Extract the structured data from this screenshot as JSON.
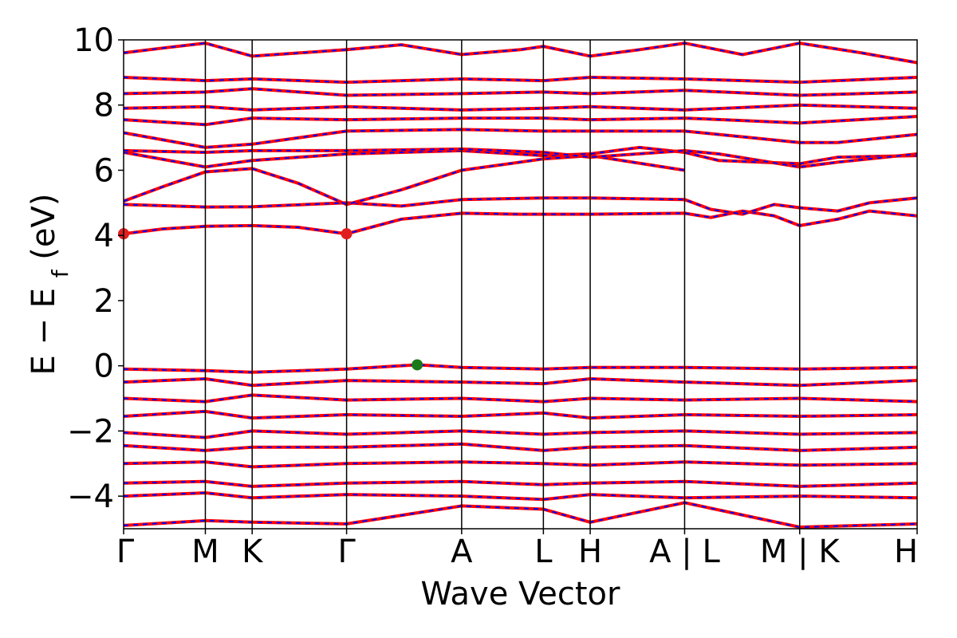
{
  "chart_data": {
    "type": "line",
    "title": "",
    "xlabel": "Wave Vector",
    "ylabel": "E − E",
    "ylabel_subscript": "f",
    "ylabel_unit": "(eV)",
    "ylim": [
      -5,
      10
    ],
    "yticks": [
      -4,
      -2,
      0,
      2,
      4,
      6,
      8,
      10
    ],
    "ytick_labels": [
      "−4",
      "−2",
      "0",
      "2",
      "4",
      "6",
      "8",
      "10"
    ],
    "kpath_positions": [
      0,
      0.103,
      0.162,
      0.281,
      0.426,
      0.529,
      0.588,
      0.707,
      0.852,
      1.0
    ],
    "kpath_labels": [
      "Γ",
      "M",
      "K",
      "Γ",
      "A",
      "L",
      "H",
      "A | L",
      "M | K",
      "H"
    ],
    "colors": {
      "spin_up": "#ff0000",
      "spin_down": "#0000ff",
      "cbm": "#e02020",
      "vbm": "#1a7a1a"
    },
    "cbm_points": [
      {
        "k": 0.0,
        "energy": 4.05
      },
      {
        "k": 0.281,
        "energy": 4.05
      }
    ],
    "vbm_point": {
      "k": 0.37,
      "energy": 0.03
    },
    "series": [
      {
        "values": [
          [
            0,
            4.05
          ],
          [
            0.05,
            4.2
          ],
          [
            0.103,
            4.28
          ],
          [
            0.162,
            4.3
          ],
          [
            0.22,
            4.25
          ],
          [
            0.281,
            4.05
          ],
          [
            0.35,
            4.5
          ],
          [
            0.426,
            4.68
          ],
          [
            0.5,
            4.65
          ],
          [
            0.529,
            4.65
          ],
          [
            0.588,
            4.65
          ],
          [
            0.707,
            4.68
          ],
          [
            0.74,
            4.55
          ],
          [
            0.78,
            4.75
          ],
          [
            0.82,
            4.6
          ],
          [
            0.852,
            4.3
          ],
          [
            0.9,
            4.5
          ],
          [
            0.94,
            4.75
          ],
          [
            1.0,
            4.6
          ]
        ]
      },
      {
        "values": [
          [
            0,
            4.95
          ],
          [
            0.103,
            4.87
          ],
          [
            0.162,
            4.88
          ],
          [
            0.281,
            5.0
          ],
          [
            0.35,
            4.9
          ],
          [
            0.426,
            5.1
          ],
          [
            0.529,
            5.15
          ],
          [
            0.588,
            5.15
          ],
          [
            0.707,
            5.1
          ],
          [
            0.74,
            4.8
          ],
          [
            0.78,
            4.65
          ],
          [
            0.82,
            4.95
          ],
          [
            0.852,
            4.85
          ],
          [
            0.9,
            4.75
          ],
          [
            0.94,
            5.0
          ],
          [
            1.0,
            5.15
          ]
        ]
      },
      {
        "values": [
          [
            0,
            5.05
          ],
          [
            0.05,
            5.5
          ],
          [
            0.103,
            5.95
          ],
          [
            0.162,
            6.05
          ],
          [
            0.22,
            5.6
          ],
          [
            0.281,
            4.95
          ],
          [
            0.35,
            5.4
          ],
          [
            0.426,
            6.0
          ],
          [
            0.5,
            6.25
          ],
          [
            0.529,
            6.35
          ],
          [
            0.588,
            6.45
          ],
          [
            0.707,
            6.0
          ]
        ]
      },
      {
        "values": [
          [
            0,
            6.55
          ],
          [
            0.103,
            6.1
          ],
          [
            0.162,
            6.3
          ],
          [
            0.281,
            6.5
          ],
          [
            0.426,
            6.6
          ],
          [
            0.529,
            6.45
          ],
          [
            0.588,
            6.5
          ],
          [
            0.65,
            6.7
          ],
          [
            0.707,
            6.55
          ],
          [
            0.75,
            6.3
          ],
          [
            0.852,
            6.2
          ],
          [
            0.9,
            6.4
          ],
          [
            1.0,
            6.45
          ]
        ]
      },
      {
        "values": [
          [
            0,
            6.6
          ],
          [
            0.103,
            6.55
          ],
          [
            0.162,
            6.6
          ],
          [
            0.281,
            6.6
          ],
          [
            0.426,
            6.65
          ],
          [
            0.529,
            6.55
          ],
          [
            0.588,
            6.4
          ],
          [
            0.707,
            6.6
          ],
          [
            0.75,
            6.5
          ],
          [
            0.852,
            6.1
          ],
          [
            0.9,
            6.25
          ],
          [
            1.0,
            6.5
          ]
        ]
      },
      {
        "values": [
          [
            0,
            7.15
          ],
          [
            0.103,
            6.7
          ],
          [
            0.162,
            6.8
          ],
          [
            0.281,
            7.2
          ],
          [
            0.426,
            7.25
          ],
          [
            0.529,
            7.2
          ],
          [
            0.588,
            7.2
          ],
          [
            0.707,
            7.2
          ],
          [
            0.852,
            6.85
          ],
          [
            0.9,
            6.85
          ],
          [
            1.0,
            7.1
          ]
        ]
      },
      {
        "values": [
          [
            0,
            7.55
          ],
          [
            0.103,
            7.4
          ],
          [
            0.162,
            7.6
          ],
          [
            0.281,
            7.55
          ],
          [
            0.426,
            7.6
          ],
          [
            0.529,
            7.6
          ],
          [
            0.588,
            7.55
          ],
          [
            0.707,
            7.6
          ],
          [
            0.852,
            7.45
          ],
          [
            1.0,
            7.65
          ]
        ]
      },
      {
        "values": [
          [
            0,
            7.9
          ],
          [
            0.103,
            7.95
          ],
          [
            0.162,
            7.85
          ],
          [
            0.281,
            7.95
          ],
          [
            0.426,
            7.85
          ],
          [
            0.529,
            7.9
          ],
          [
            0.588,
            7.95
          ],
          [
            0.707,
            7.85
          ],
          [
            0.852,
            8.0
          ],
          [
            1.0,
            7.9
          ]
        ]
      },
      {
        "values": [
          [
            0,
            8.35
          ],
          [
            0.103,
            8.4
          ],
          [
            0.162,
            8.5
          ],
          [
            0.281,
            8.3
          ],
          [
            0.426,
            8.35
          ],
          [
            0.529,
            8.4
          ],
          [
            0.588,
            8.35
          ],
          [
            0.707,
            8.45
          ],
          [
            0.852,
            8.3
          ],
          [
            1.0,
            8.4
          ]
        ]
      },
      {
        "values": [
          [
            0,
            8.85
          ],
          [
            0.103,
            8.75
          ],
          [
            0.162,
            8.8
          ],
          [
            0.281,
            8.7
          ],
          [
            0.426,
            8.8
          ],
          [
            0.529,
            8.75
          ],
          [
            0.588,
            8.85
          ],
          [
            0.707,
            8.8
          ],
          [
            0.852,
            8.7
          ],
          [
            1.0,
            8.85
          ]
        ]
      },
      {
        "values": [
          [
            0,
            9.6
          ],
          [
            0.05,
            9.75
          ],
          [
            0.103,
            9.9
          ],
          [
            0.162,
            9.5
          ],
          [
            0.281,
            9.7
          ],
          [
            0.35,
            9.85
          ],
          [
            0.426,
            9.55
          ],
          [
            0.5,
            9.7
          ],
          [
            0.529,
            9.8
          ],
          [
            0.588,
            9.5
          ],
          [
            0.65,
            9.7
          ],
          [
            0.707,
            9.9
          ],
          [
            0.78,
            9.55
          ],
          [
            0.852,
            9.9
          ],
          [
            0.93,
            9.6
          ],
          [
            1.0,
            9.3
          ]
        ]
      },
      {
        "values": [
          [
            0,
            -0.1
          ],
          [
            0.103,
            -0.15
          ],
          [
            0.162,
            -0.2
          ],
          [
            0.281,
            -0.1
          ],
          [
            0.37,
            0.03
          ],
          [
            0.426,
            -0.05
          ],
          [
            0.529,
            -0.1
          ],
          [
            0.588,
            -0.05
          ],
          [
            0.707,
            -0.05
          ],
          [
            0.852,
            -0.1
          ],
          [
            1.0,
            -0.05
          ]
        ]
      },
      {
        "values": [
          [
            0,
            -0.5
          ],
          [
            0.103,
            -0.4
          ],
          [
            0.162,
            -0.6
          ],
          [
            0.281,
            -0.45
          ],
          [
            0.426,
            -0.5
          ],
          [
            0.529,
            -0.55
          ],
          [
            0.588,
            -0.4
          ],
          [
            0.707,
            -0.5
          ],
          [
            0.852,
            -0.6
          ],
          [
            1.0,
            -0.45
          ]
        ]
      },
      {
        "values": [
          [
            0,
            -1.0
          ],
          [
            0.103,
            -1.1
          ],
          [
            0.162,
            -0.9
          ],
          [
            0.281,
            -1.05
          ],
          [
            0.426,
            -1.0
          ],
          [
            0.529,
            -1.1
          ],
          [
            0.588,
            -1.0
          ],
          [
            0.707,
            -1.05
          ],
          [
            0.852,
            -1.0
          ],
          [
            1.0,
            -1.1
          ]
        ]
      },
      {
        "values": [
          [
            0,
            -1.55
          ],
          [
            0.103,
            -1.4
          ],
          [
            0.162,
            -1.6
          ],
          [
            0.281,
            -1.5
          ],
          [
            0.426,
            -1.55
          ],
          [
            0.529,
            -1.45
          ],
          [
            0.588,
            -1.6
          ],
          [
            0.707,
            -1.5
          ],
          [
            0.852,
            -1.55
          ],
          [
            1.0,
            -1.5
          ]
        ]
      },
      {
        "values": [
          [
            0,
            -2.05
          ],
          [
            0.103,
            -2.2
          ],
          [
            0.162,
            -2.0
          ],
          [
            0.281,
            -2.1
          ],
          [
            0.426,
            -2.0
          ],
          [
            0.529,
            -2.1
          ],
          [
            0.588,
            -2.05
          ],
          [
            0.707,
            -2.0
          ],
          [
            0.852,
            -2.1
          ],
          [
            1.0,
            -2.05
          ]
        ]
      },
      {
        "values": [
          [
            0,
            -2.45
          ],
          [
            0.103,
            -2.6
          ],
          [
            0.162,
            -2.5
          ],
          [
            0.281,
            -2.5
          ],
          [
            0.426,
            -2.4
          ],
          [
            0.529,
            -2.6
          ],
          [
            0.588,
            -2.5
          ],
          [
            0.707,
            -2.45
          ],
          [
            0.852,
            -2.6
          ],
          [
            1.0,
            -2.5
          ]
        ]
      },
      {
        "values": [
          [
            0,
            -3.0
          ],
          [
            0.103,
            -2.95
          ],
          [
            0.162,
            -3.1
          ],
          [
            0.281,
            -3.0
          ],
          [
            0.426,
            -2.95
          ],
          [
            0.529,
            -3.0
          ],
          [
            0.588,
            -3.05
          ],
          [
            0.707,
            -2.95
          ],
          [
            0.852,
            -3.05
          ],
          [
            1.0,
            -3.0
          ]
        ]
      },
      {
        "values": [
          [
            0,
            -3.6
          ],
          [
            0.103,
            -3.55
          ],
          [
            0.162,
            -3.7
          ],
          [
            0.281,
            -3.6
          ],
          [
            0.426,
            -3.55
          ],
          [
            0.529,
            -3.65
          ],
          [
            0.588,
            -3.6
          ],
          [
            0.707,
            -3.55
          ],
          [
            0.852,
            -3.7
          ],
          [
            1.0,
            -3.6
          ]
        ]
      },
      {
        "values": [
          [
            0,
            -4.0
          ],
          [
            0.103,
            -3.9
          ],
          [
            0.162,
            -4.05
          ],
          [
            0.281,
            -3.95
          ],
          [
            0.426,
            -4.0
          ],
          [
            0.529,
            -4.1
          ],
          [
            0.588,
            -3.95
          ],
          [
            0.707,
            -4.05
          ],
          [
            0.852,
            -4.0
          ],
          [
            1.0,
            -4.05
          ]
        ]
      },
      {
        "values": [
          [
            0,
            -4.9
          ],
          [
            0.103,
            -4.75
          ],
          [
            0.162,
            -4.8
          ],
          [
            0.281,
            -4.85
          ],
          [
            0.426,
            -4.3
          ],
          [
            0.529,
            -4.4
          ],
          [
            0.588,
            -4.8
          ],
          [
            0.707,
            -4.2
          ],
          [
            0.852,
            -4.95
          ],
          [
            1.0,
            -4.85
          ]
        ]
      }
    ]
  }
}
